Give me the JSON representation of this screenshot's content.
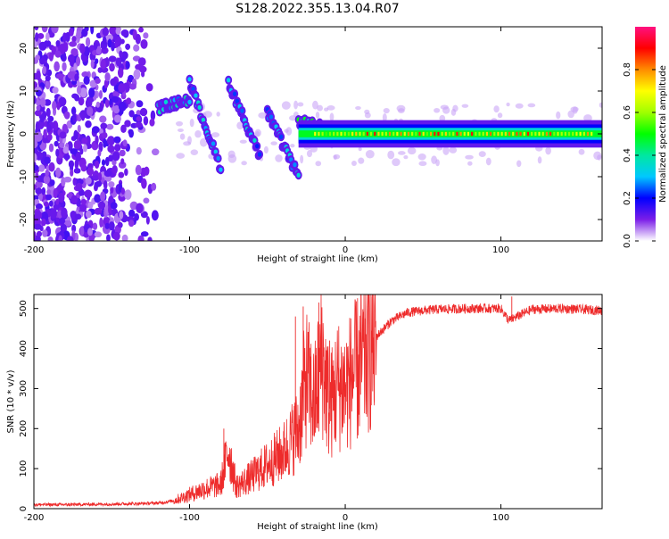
{
  "figure": {
    "title": "S128.2022.355.13.04.R07"
  },
  "chart_data": [
    {
      "type": "heatmap",
      "panel": "top",
      "title": "",
      "xlabel": "Height of straight line (km)",
      "ylabel": "Frequency (Hz)",
      "xlim": [
        -200,
        165
      ],
      "ylim": [
        -25,
        25
      ],
      "x_ticks": [
        -200,
        -100,
        0,
        100
      ],
      "x_tick_labels": [
        "-200",
        "-100",
        "0",
        "100"
      ],
      "y_ticks": [
        -20,
        -10,
        0,
        10,
        20
      ],
      "y_tick_labels": [
        "-20",
        "-10",
        "0",
        "10",
        "20"
      ],
      "colorbar": {
        "label": "Normalized spectral amplitude",
        "range": [
          0,
          1
        ],
        "ticks": [
          0.0,
          0.2,
          0.4,
          0.6,
          0.8
        ],
        "tick_labels": [
          "0.0",
          "0.2",
          "0.4",
          "0.6",
          "0.8"
        ]
      },
      "description_of_signal": {
        "noise_region_x": [
          -200,
          -120
        ],
        "carrier_frequency_hz": 0,
        "carrier_start_x": -30,
        "drifting_segments": [
          {
            "x": [
              -120,
              -100
            ],
            "freq_hz": [
              6,
              8
            ],
            "amp": 0.35
          },
          {
            "x": [
              -100,
              -80
            ],
            "freq_hz": [
              12,
              -8
            ],
            "amp": 0.3
          },
          {
            "x": [
              -75,
              -55
            ],
            "freq_hz": [
              12,
              -5
            ],
            "amp": 0.3
          },
          {
            "x": [
              -50,
              -30
            ],
            "freq_hz": [
              5,
              -10
            ],
            "amp": 0.3
          },
          {
            "x": [
              -30,
              -10
            ],
            "freq_hz": [
              3,
              1
            ],
            "amp": 0.45
          }
        ]
      }
    },
    {
      "type": "line",
      "panel": "bottom",
      "title": "",
      "xlabel": "Height of straight line (km)",
      "ylabel": "SNR (10 * v/v)",
      "xlim": [
        -200,
        165
      ],
      "ylim": [
        0,
        535
      ],
      "x_ticks": [
        -200,
        -100,
        0,
        100
      ],
      "x_tick_labels": [
        "-200",
        "-100",
        "0",
        "100"
      ],
      "y_ticks": [
        0,
        100,
        200,
        300,
        400,
        500
      ],
      "y_tick_labels": [
        "0",
        "100",
        "200",
        "300",
        "400",
        "500"
      ],
      "series": [
        {
          "color": "#ee2b2b",
          "x": [
            -200,
            -180,
            -160,
            -140,
            -120,
            -110,
            -100,
            -90,
            -80,
            -75,
            -70,
            -60,
            -50,
            -40,
            -30,
            -25,
            -20,
            -15,
            -10,
            -5,
            0,
            5,
            10,
            15,
            20,
            25,
            30,
            40,
            50,
            60,
            80,
            100,
            105,
            120,
            140,
            165
          ],
          "y": [
            10,
            10,
            11,
            12,
            14,
            20,
            35,
            50,
            60,
            150,
            55,
            80,
            110,
            140,
            200,
            330,
            260,
            380,
            250,
            310,
            300,
            330,
            360,
            400,
            430,
            450,
            470,
            490,
            495,
            498,
            500,
            500,
            470,
            498,
            500,
            495
          ],
          "spikes": [
            {
              "x": -78,
              "y": 200
            },
            {
              "x": -32,
              "y": 480
            },
            {
              "x": -27,
              "y": 505
            },
            {
              "x": -17,
              "y": 515
            },
            {
              "x": -10,
              "y": 420
            },
            {
              "x": 5,
              "y": 400
            },
            {
              "x": 107,
              "y": 530
            }
          ]
        }
      ]
    }
  ]
}
